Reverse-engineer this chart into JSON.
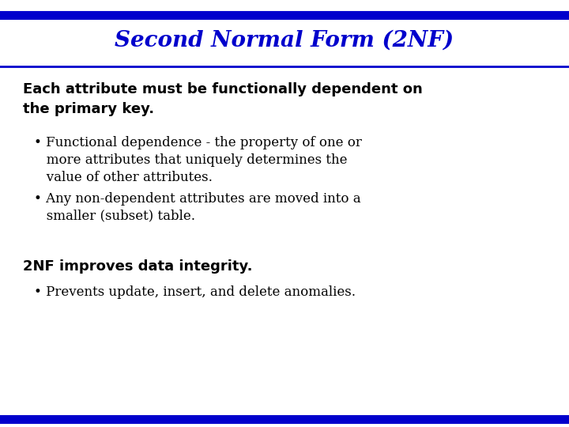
{
  "title": "Second Normal Form (2NF)",
  "title_color": "#0000CC",
  "title_fontsize": 20,
  "title_style": "italic",
  "title_weight": "bold",
  "title_font": "serif",
  "bg_color": "#FFFFFF",
  "top_bar_color": "#0000CC",
  "bottom_bar_color": "#0000CC",
  "header_text_line1": "Each attribute must be functionally dependent on",
  "header_text_line2": "the primary key.",
  "header_fontsize": 13,
  "header_weight": "bold",
  "header_color": "#000000",
  "header_font": "sans-serif",
  "bullet1_line1": "• Functional dependence - the property of one or",
  "bullet1_line2": "   more attributes that uniquely determines the",
  "bullet1_line3": "   value of other attributes.",
  "bullet2_line1": "• Any non-dependent attributes are moved into a",
  "bullet2_line2": "   smaller (subset) table.",
  "bullet_fontsize": 12,
  "bullet_color": "#000000",
  "bullet_font": "serif",
  "footer_heading": "2NF improves data integrity.",
  "footer_heading_fontsize": 13,
  "footer_heading_weight": "bold",
  "footer_heading_font": "sans-serif",
  "footer_heading_color": "#000000",
  "footer_bullet": "• Prevents update, insert, and delete anomalies.",
  "footer_bullet_fontsize": 12,
  "footer_bullet_font": "serif",
  "footer_bullet_color": "#000000"
}
